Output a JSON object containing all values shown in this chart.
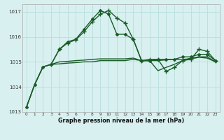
{
  "title": "",
  "xlabel": "Graphe pression niveau de la mer (hPa)",
  "background_color": "#d8f0f0",
  "grid_color": "#b8dede",
  "line_color": "#1a5c28",
  "xlim": [
    -0.5,
    23.5
  ],
  "ylim": [
    1013.0,
    1017.3
  ],
  "yticks": [
    1013,
    1014,
    1015,
    1016,
    1017
  ],
  "xticks": [
    0,
    1,
    2,
    3,
    4,
    5,
    6,
    7,
    8,
    9,
    10,
    11,
    12,
    13,
    14,
    15,
    16,
    17,
    18,
    19,
    20,
    21,
    22,
    23
  ],
  "series": [
    {
      "x": [
        0,
        1,
        2,
        3,
        4,
        5,
        6,
        7,
        8,
        9,
        10,
        11,
        12,
        13,
        14,
        15,
        16,
        17,
        18,
        19,
        20,
        21,
        22,
        23
      ],
      "y": [
        1013.2,
        1014.1,
        1014.8,
        1014.9,
        1015.5,
        1015.8,
        1015.9,
        1016.3,
        1016.7,
        1017.05,
        1016.9,
        1016.1,
        1016.1,
        1015.9,
        1015.05,
        1015.05,
        1015.1,
        1015.1,
        1015.1,
        1015.2,
        1015.2,
        1015.3,
        1015.3,
        1015.05
      ],
      "marker": "D",
      "markersize": 2.0,
      "linewidth": 1.0
    },
    {
      "x": [
        0,
        1,
        2,
        3,
        4,
        5,
        6,
        7,
        8,
        9,
        10,
        11,
        12,
        13,
        14,
        15,
        16,
        17,
        18,
        19,
        20,
        21,
        22,
        23
      ],
      "y": [
        1013.2,
        1014.1,
        1014.8,
        1014.9,
        1014.92,
        1014.95,
        1014.97,
        1015.0,
        1015.0,
        1015.05,
        1015.05,
        1015.05,
        1015.05,
        1015.1,
        1015.05,
        1015.05,
        1014.65,
        1014.78,
        1014.9,
        1015.05,
        1015.15,
        1015.2,
        1015.2,
        1015.0
      ],
      "marker": null,
      "linewidth": 1.0
    },
    {
      "x": [
        0,
        1,
        2,
        3,
        4,
        5,
        6,
        7,
        8,
        9,
        10,
        11,
        12,
        13,
        14,
        15,
        16,
        17,
        18,
        19,
        20,
        21,
        22,
        23
      ],
      "y": [
        1013.2,
        1014.1,
        1014.8,
        1014.9,
        1015.0,
        1015.02,
        1015.05,
        1015.07,
        1015.1,
        1015.12,
        1015.12,
        1015.12,
        1015.12,
        1015.15,
        1015.05,
        1015.05,
        1015.05,
        1015.08,
        1015.1,
        1015.1,
        1015.12,
        1015.18,
        1015.15,
        1015.0
      ],
      "marker": null,
      "linewidth": 1.0
    },
    {
      "x": [
        3,
        4,
        5,
        6,
        7,
        8,
        9,
        10,
        11,
        12,
        13,
        14,
        15,
        16,
        17,
        18,
        19,
        20,
        21,
        22,
        23
      ],
      "y": [
        1014.9,
        1015.5,
        1015.75,
        1015.88,
        1016.2,
        1016.6,
        1016.9,
        1017.05,
        1016.75,
        1016.55,
        1015.9,
        1015.05,
        1015.1,
        1015.1,
        1014.62,
        1014.78,
        1015.05,
        1015.1,
        1015.5,
        1015.42,
        1015.05
      ],
      "marker": "+",
      "markersize": 4.0,
      "linewidth": 1.0
    }
  ]
}
